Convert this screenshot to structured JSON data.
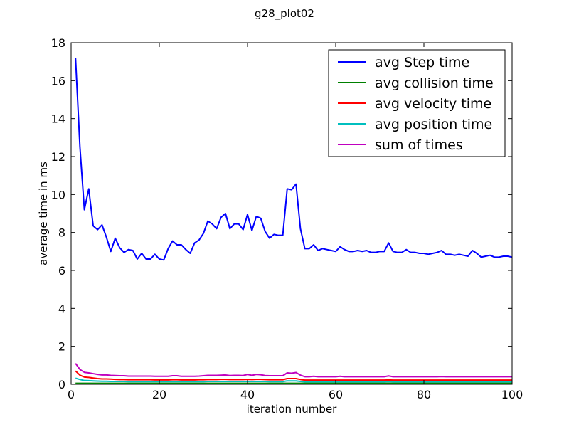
{
  "chart_data": {
    "type": "line",
    "title": "g28_plot02",
    "xlabel": "iteration number",
    "ylabel": "average time in ms",
    "xlim": [
      0,
      100
    ],
    "ylim": [
      0,
      18
    ],
    "xticks": [
      0,
      20,
      40,
      60,
      80,
      100
    ],
    "yticks": [
      0,
      2,
      4,
      6,
      8,
      10,
      12,
      14,
      16,
      18
    ],
    "legend_position": "top-right",
    "grid": false,
    "x": [
      1,
      2,
      3,
      4,
      5,
      6,
      7,
      8,
      9,
      10,
      11,
      12,
      13,
      14,
      15,
      16,
      17,
      18,
      19,
      20,
      21,
      22,
      23,
      24,
      25,
      26,
      27,
      28,
      29,
      30,
      31,
      32,
      33,
      34,
      35,
      36,
      37,
      38,
      39,
      40,
      41,
      42,
      43,
      44,
      45,
      46,
      47,
      48,
      49,
      50,
      51,
      52,
      53,
      54,
      55,
      56,
      57,
      58,
      59,
      60,
      61,
      62,
      63,
      64,
      65,
      66,
      67,
      68,
      69,
      70,
      71,
      72,
      73,
      74,
      75,
      76,
      77,
      78,
      79,
      80,
      81,
      82,
      83,
      84,
      85,
      86,
      87,
      88,
      89,
      90,
      91,
      92,
      93,
      94,
      95,
      96,
      97,
      98,
      99,
      100
    ],
    "series": [
      {
        "name": "avg Step time",
        "color": "#0000ff",
        "values": [
          17.2,
          12.5,
          9.2,
          10.3,
          8.35,
          8.15,
          8.4,
          7.75,
          7.0,
          7.7,
          7.2,
          6.95,
          7.1,
          7.05,
          6.6,
          6.9,
          6.6,
          6.6,
          6.85,
          6.6,
          6.55,
          7.15,
          7.55,
          7.35,
          7.35,
          7.1,
          6.9,
          7.45,
          7.6,
          7.95,
          8.6,
          8.45,
          8.2,
          8.8,
          9.0,
          8.2,
          8.45,
          8.45,
          8.15,
          8.95,
          8.1,
          8.85,
          8.75,
          8.05,
          7.7,
          7.9,
          7.85,
          7.85,
          10.3,
          10.25,
          10.55,
          8.2,
          7.15,
          7.15,
          7.35,
          7.05,
          7.15,
          7.1,
          7.05,
          7.0,
          7.25,
          7.1,
          7.0,
          7.0,
          7.05,
          7.0,
          7.05,
          6.95,
          6.95,
          7.0,
          7.0,
          7.45,
          7.0,
          6.95,
          6.95,
          7.1,
          6.95,
          6.95,
          6.9,
          6.9,
          6.85,
          6.9,
          6.95,
          7.05,
          6.85,
          6.85,
          6.8,
          6.85,
          6.8,
          6.75,
          7.05,
          6.9,
          6.7,
          6.75,
          6.8,
          6.7,
          6.7,
          6.75,
          6.75,
          6.7
        ]
      },
      {
        "name": "avg collision time",
        "color": "#008000",
        "values": [
          0.05,
          0.05,
          0.05,
          0.05,
          0.05,
          0.05,
          0.05,
          0.05,
          0.05,
          0.05,
          0.05,
          0.05,
          0.05,
          0.05,
          0.05,
          0.05,
          0.05,
          0.05,
          0.05,
          0.05,
          0.05,
          0.05,
          0.05,
          0.05,
          0.05,
          0.05,
          0.05,
          0.05,
          0.05,
          0.05,
          0.05,
          0.05,
          0.05,
          0.05,
          0.05,
          0.05,
          0.05,
          0.05,
          0.05,
          0.05,
          0.05,
          0.05,
          0.05,
          0.05,
          0.05,
          0.05,
          0.05,
          0.05,
          0.05,
          0.05,
          0.05,
          0.05,
          0.05,
          0.05,
          0.05,
          0.05,
          0.05,
          0.05,
          0.05,
          0.05,
          0.05,
          0.05,
          0.05,
          0.05,
          0.05,
          0.05,
          0.05,
          0.05,
          0.05,
          0.05,
          0.05,
          0.05,
          0.05,
          0.05,
          0.05,
          0.05,
          0.05,
          0.05,
          0.05,
          0.05,
          0.05,
          0.05,
          0.05,
          0.05,
          0.05,
          0.05,
          0.05,
          0.05,
          0.05,
          0.05,
          0.05,
          0.05,
          0.05,
          0.05,
          0.05,
          0.05,
          0.05,
          0.05,
          0.05,
          0.05
        ]
      },
      {
        "name": "avg velocity time",
        "color": "#ff0000",
        "values": [
          0.7,
          0.48,
          0.38,
          0.36,
          0.33,
          0.3,
          0.28,
          0.28,
          0.27,
          0.26,
          0.25,
          0.25,
          0.24,
          0.24,
          0.24,
          0.24,
          0.24,
          0.24,
          0.23,
          0.23,
          0.23,
          0.23,
          0.24,
          0.24,
          0.23,
          0.23,
          0.23,
          0.23,
          0.24,
          0.24,
          0.25,
          0.25,
          0.25,
          0.26,
          0.26,
          0.25,
          0.25,
          0.25,
          0.25,
          0.26,
          0.25,
          0.26,
          0.26,
          0.25,
          0.24,
          0.24,
          0.24,
          0.24,
          0.3,
          0.3,
          0.3,
          0.25,
          0.22,
          0.22,
          0.22,
          0.22,
          0.22,
          0.22,
          0.22,
          0.22,
          0.22,
          0.22,
          0.22,
          0.22,
          0.22,
          0.22,
          0.22,
          0.22,
          0.22,
          0.22,
          0.22,
          0.23,
          0.22,
          0.22,
          0.22,
          0.22,
          0.22,
          0.22,
          0.22,
          0.22,
          0.22,
          0.22,
          0.22,
          0.22,
          0.22,
          0.22,
          0.22,
          0.22,
          0.22,
          0.22,
          0.22,
          0.22,
          0.22,
          0.22,
          0.22,
          0.22,
          0.22,
          0.22,
          0.22,
          0.22
        ]
      },
      {
        "name": "avg position time",
        "color": "#00bfbf",
        "values": [
          0.32,
          0.25,
          0.2,
          0.19,
          0.18,
          0.17,
          0.16,
          0.16,
          0.15,
          0.15,
          0.15,
          0.15,
          0.14,
          0.14,
          0.14,
          0.14,
          0.14,
          0.14,
          0.14,
          0.14,
          0.14,
          0.14,
          0.14,
          0.14,
          0.14,
          0.14,
          0.14,
          0.14,
          0.14,
          0.14,
          0.15,
          0.15,
          0.15,
          0.15,
          0.15,
          0.15,
          0.15,
          0.15,
          0.15,
          0.15,
          0.15,
          0.15,
          0.15,
          0.15,
          0.14,
          0.14,
          0.14,
          0.14,
          0.18,
          0.18,
          0.18,
          0.15,
          0.13,
          0.13,
          0.13,
          0.13,
          0.13,
          0.13,
          0.13,
          0.13,
          0.13,
          0.13,
          0.13,
          0.13,
          0.13,
          0.13,
          0.13,
          0.13,
          0.13,
          0.13,
          0.13,
          0.14,
          0.13,
          0.13,
          0.13,
          0.13,
          0.13,
          0.13,
          0.13,
          0.13,
          0.13,
          0.13,
          0.13,
          0.13,
          0.13,
          0.13,
          0.13,
          0.13,
          0.13,
          0.13,
          0.13,
          0.13,
          0.13,
          0.13,
          0.13,
          0.13,
          0.13,
          0.13,
          0.13,
          0.13
        ]
      },
      {
        "name": "sum of times",
        "color": "#bf00bf",
        "values": [
          1.1,
          0.78,
          0.63,
          0.6,
          0.56,
          0.52,
          0.49,
          0.49,
          0.47,
          0.46,
          0.45,
          0.45,
          0.43,
          0.43,
          0.43,
          0.43,
          0.43,
          0.43,
          0.42,
          0.42,
          0.42,
          0.42,
          0.45,
          0.45,
          0.42,
          0.42,
          0.42,
          0.42,
          0.43,
          0.45,
          0.47,
          0.47,
          0.47,
          0.48,
          0.49,
          0.46,
          0.47,
          0.47,
          0.46,
          0.52,
          0.47,
          0.52,
          0.5,
          0.46,
          0.45,
          0.45,
          0.45,
          0.45,
          0.6,
          0.58,
          0.62,
          0.48,
          0.4,
          0.4,
          0.42,
          0.4,
          0.4,
          0.4,
          0.4,
          0.4,
          0.42,
          0.4,
          0.4,
          0.4,
          0.4,
          0.4,
          0.4,
          0.4,
          0.4,
          0.4,
          0.4,
          0.44,
          0.4,
          0.4,
          0.4,
          0.4,
          0.4,
          0.4,
          0.4,
          0.4,
          0.4,
          0.4,
          0.4,
          0.41,
          0.4,
          0.4,
          0.4,
          0.4,
          0.4,
          0.4,
          0.4,
          0.4,
          0.4,
          0.4,
          0.4,
          0.4,
          0.4,
          0.4,
          0.4,
          0.4
        ]
      }
    ]
  }
}
